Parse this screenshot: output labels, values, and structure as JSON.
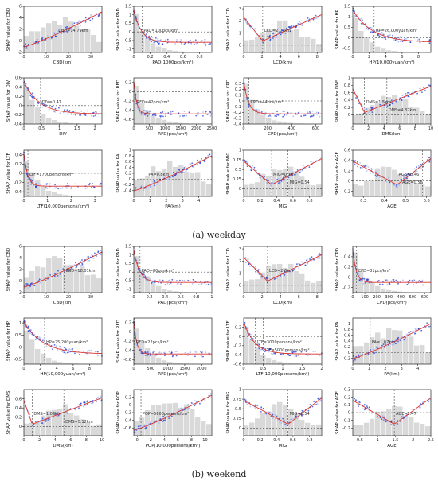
{
  "captions": {
    "weekday": "(a) weekday",
    "weekend": "(b) weekend"
  },
  "colors": {
    "points_low": "#1f3bd6",
    "points_high": "#9fb4ec",
    "trend": "#e0322b",
    "hist": "#d9d9d9",
    "ref": "#444444"
  },
  "chart_data": [
    {
      "type": "scatter",
      "panel": "a1",
      "xlabel": "CBD(km)",
      "ylabel": "SHAP value for CBD",
      "xlim": [
        0,
        35
      ],
      "ylim": [
        -2,
        6
      ],
      "xticks": [
        0,
        10,
        20,
        30
      ],
      "yticks": [
        -2,
        0,
        2,
        4,
        6
      ],
      "shape": "rise",
      "threshold": 14.79,
      "annotation": "CBD=14.79km"
    },
    {
      "type": "scatter",
      "panel": "a2",
      "xlabel": "PAD(1000pcs/km²)",
      "ylabel": "SHAP value for PAD",
      "xlim": [
        0,
        0.95
      ],
      "ylim": [
        -1.2,
        1.5
      ],
      "xticks": [
        0.0,
        0.2,
        0.4,
        0.6,
        0.8
      ],
      "yticks": [
        -1.0,
        -0.5,
        0.0,
        0.5,
        1.0,
        1.5
      ],
      "shape": "decay",
      "threshold": 0.1,
      "annotation": "PAD=100pcs/km²"
    },
    {
      "type": "scatter",
      "panel": "a3",
      "xlabel": "LCD(km)",
      "ylabel": "SHAP value for LCD",
      "xlim": [
        0,
        8.5
      ],
      "ylim": [
        -0.6,
        3.2
      ],
      "xticks": [
        0,
        2,
        4,
        6,
        8
      ],
      "yticks": [
        0,
        1,
        2,
        3
      ],
      "shape": "vshape",
      "threshold": 2.07,
      "annotation": "LCD=2.07km"
    },
    {
      "type": "scatter",
      "panel": "a4",
      "xlabel": "HP(10,000yuan/km²)",
      "ylabel": "SHAP value for HP",
      "xlim": [
        0,
        9.5
      ],
      "ylim": [
        -0.7,
        1.5
      ],
      "xticks": [
        0,
        2,
        4,
        6,
        8
      ],
      "yticks": [
        -0.5,
        0.0,
        0.5,
        1.0,
        1.5
      ],
      "shape": "decay",
      "threshold": 2.6,
      "annotation": "HP=26,000yuan/km²"
    },
    {
      "type": "scatter",
      "panel": "a5",
      "xlabel": "DIV",
      "ylabel": "SHAP value for DIV",
      "xlim": [
        0,
        2.2
      ],
      "ylim": [
        -0.4,
        0.6
      ],
      "xticks": [
        0.0,
        0.5,
        1.0,
        1.5,
        2.0
      ],
      "yticks": [
        -0.4,
        -0.2,
        0.0,
        0.2,
        0.4,
        0.6
      ],
      "shape": "decay",
      "threshold": 0.47,
      "annotation": "DIV=0.47"
    },
    {
      "type": "scatter",
      "panel": "a6",
      "xlabel": "RFD(pcs/km²)",
      "ylabel": "SHAP value for RFD",
      "xlim": [
        0,
        2500
      ],
      "ylim": [
        -0.7,
        0.3
      ],
      "xticks": [
        0,
        500,
        1000,
        1500,
        2000,
        2500
      ],
      "yticks": [
        -0.6,
        -0.4,
        -0.2,
        0.0,
        0.2
      ],
      "shape": "decay",
      "threshold": 42,
      "annotation": "RFD=42pcs/km²"
    },
    {
      "type": "scatter",
      "panel": "a7",
      "xlabel": "CPD(pcs/km²)",
      "ylabel": "SHAP value for CPD",
      "xlim": [
        0,
        650
      ],
      "ylim": [
        -0.4,
        0.4
      ],
      "xticks": [
        0,
        200,
        400,
        600
      ],
      "yticks": [
        -0.4,
        -0.3,
        -0.2,
        -0.1,
        0.0,
        0.1,
        0.2,
        0.3
      ],
      "shape": "decay",
      "threshold": 44,
      "annotation": "CPD=44pcs/km²"
    },
    {
      "type": "scatter",
      "panel": "a8",
      "xlabel": "DMS(km)",
      "ylabel": "SHAP value for DMS",
      "xlim": [
        0,
        10
      ],
      "ylim": [
        -0.25,
        1.0
      ],
      "xticks": [
        0,
        2,
        4,
        6,
        8,
        10
      ],
      "yticks": [
        0.0,
        0.2,
        0.4,
        0.6,
        0.8,
        1.0
      ],
      "shape": "vshape",
      "threshold": 1.5,
      "threshold2": 4.37,
      "annotation": "DMS=1.5km",
      "annotation2": "DMS=4.37km"
    },
    {
      "type": "scatter",
      "panel": "a9",
      "xlabel": "LTF(10,000persons/km²)",
      "ylabel": "SHAP value for LTF",
      "xlim": [
        0,
        3.3
      ],
      "ylim": [
        -0.5,
        0.5
      ],
      "xticks": [
        0,
        1,
        2,
        3
      ],
      "yticks": [
        -0.4,
        -0.2,
        0.0,
        0.2,
        0.4
      ],
      "shape": "decay",
      "threshold": 0.17,
      "annotation": "LTF=1700persons/km²"
    },
    {
      "type": "scatter",
      "panel": "a10",
      "xlabel": "PA(km)",
      "ylabel": "SHAP value for PA",
      "xlim": [
        0,
        4.8
      ],
      "ylim": [
        -0.6,
        1.0
      ],
      "xticks": [
        0,
        1,
        2,
        3,
        4
      ],
      "yticks": [
        -0.4,
        -0.2,
        0.0,
        0.2,
        0.4,
        0.6,
        0.8,
        1.0
      ],
      "shape": "rise",
      "threshold": 0.8,
      "annotation": "PA=0.8km"
    },
    {
      "type": "scatter",
      "panel": "a11",
      "xlabel": "MIG",
      "ylabel": "SHAP value for MIG",
      "xlim": [
        0,
        0.95
      ],
      "ylim": [
        -0.2,
        1.0
      ],
      "xticks": [
        0.0,
        0.2,
        0.4,
        0.6,
        0.8
      ],
      "yticks": [
        0.0,
        0.25,
        0.5,
        0.75,
        1.0
      ],
      "shape": "vshape",
      "threshold": 0.34,
      "threshold2": 0.54,
      "annotation": "MIG=0.34",
      "annotation2": "MIG=0.54"
    },
    {
      "type": "scatter",
      "panel": "a12",
      "xlabel": "AGE",
      "ylabel": "SHAP value for AGE",
      "xlim": [
        0.25,
        0.62
      ],
      "ylim": [
        -0.3,
        0.6
      ],
      "xticks": [
        0.3,
        0.4,
        0.5,
        0.6
      ],
      "yticks": [
        -0.2,
        0.0,
        0.2,
        0.4,
        0.6
      ],
      "shape": "vshape",
      "threshold": 0.46,
      "threshold2": 0.58,
      "annotation": "AGE=0.46",
      "annotation2": "AGE=0.58"
    },
    {
      "type": "scatter",
      "panel": "b1",
      "xlabel": "CBD(km)",
      "ylabel": "SHAP value for CBD",
      "xlim": [
        0,
        35
      ],
      "ylim": [
        -2,
        6
      ],
      "xticks": [
        0,
        10,
        20,
        30
      ],
      "yticks": [
        -2,
        0,
        2,
        4,
        6
      ],
      "shape": "rise",
      "threshold": 18.01,
      "annotation": "CBD=18.01km"
    },
    {
      "type": "scatter",
      "panel": "b2",
      "xlabel": "PAD(pcs/km²)",
      "ylabel": "SHAP value for PAD",
      "xlim": [
        0,
        1.0
      ],
      "ylim": [
        -1.2,
        1.5
      ],
      "xticks": [
        0.0,
        0.2,
        0.4,
        0.6,
        0.8,
        1.0
      ],
      "yticks": [
        -1.0,
        -0.5,
        0.0,
        0.5,
        1.0,
        1.5
      ],
      "shape": "decay",
      "threshold": 0.08,
      "annotation": "PAD=80pcs/km²"
    },
    {
      "type": "scatter",
      "panel": "b3",
      "xlabel": "LCD(km)",
      "ylabel": "SHAP value for LCD",
      "xlim": [
        0,
        8.5
      ],
      "ylim": [
        -0.6,
        3.2
      ],
      "xticks": [
        0,
        2,
        4,
        6,
        8
      ],
      "yticks": [
        0,
        1,
        2,
        3
      ],
      "shape": "vshape",
      "threshold": 2.6,
      "annotation": "LCD=2.6km"
    },
    {
      "type": "scatter",
      "panel": "b4",
      "xlabel": "CPD(pcs/km²)",
      "ylabel": "SHAP value for CPD",
      "xlim": [
        0,
        650
      ],
      "ylim": [
        -0.3,
        0.6
      ],
      "xticks": [
        0,
        100,
        200,
        300,
        400,
        500,
        600
      ],
      "yticks": [
        -0.2,
        0.0,
        0.2,
        0.4
      ],
      "shape": "decay",
      "threshold": 31,
      "annotation": "CPD=31pcs/km²"
    },
    {
      "type": "scatter",
      "panel": "b5",
      "xlabel": "HP(10,000yuan/km²)",
      "ylabel": "SHAP value for HP",
      "xlim": [
        0,
        9.5
      ],
      "ylim": [
        -0.7,
        1.2
      ],
      "xticks": [
        0,
        2,
        4,
        6,
        8
      ],
      "yticks": [
        -0.5,
        0.0,
        0.5,
        1.0
      ],
      "shape": "decay",
      "threshold": 2.52,
      "annotation": "HP=25,200yuan/km²"
    },
    {
      "type": "scatter",
      "panel": "b6",
      "xlabel": "RFD(pcs/km²)",
      "ylabel": "SHAP value for RFD",
      "xlim": [
        0,
        2300
      ],
      "ylim": [
        -0.7,
        0.3
      ],
      "xticks": [
        0,
        500,
        1000,
        1500,
        2000
      ],
      "yticks": [
        -0.6,
        -0.4,
        -0.2,
        0.0,
        0.2
      ],
      "shape": "decay",
      "threshold": 22,
      "annotation": "RFD=22pcs/km²"
    },
    {
      "type": "scatter",
      "panel": "b7",
      "xlabel": "LTF(10,000persons/km²)",
      "ylabel": "SHAP value for LTF",
      "xlim": [
        0,
        2.0
      ],
      "ylim": [
        -0.6,
        0.4
      ],
      "xticks": [
        0.0,
        0.5,
        1.0,
        1.5,
        2.0
      ],
      "yticks": [
        -0.6,
        -0.4,
        -0.2,
        0.0,
        0.2
      ],
      "shape": "decay",
      "threshold": 0.3,
      "threshold2": 0.5,
      "annotation": "LTF=3000persons/km²",
      "annotation2": "LTF=5000persons/km²"
    },
    {
      "type": "scatter",
      "panel": "b8",
      "xlabel": "PA(km)",
      "ylabel": "SHAP value for PA",
      "xlim": [
        0,
        4.8
      ],
      "ylim": [
        -0.4,
        1.2
      ],
      "xticks": [
        0,
        1,
        2,
        3,
        4
      ],
      "yticks": [
        -0.2,
        0.0,
        0.2,
        0.4,
        0.6,
        0.8,
        1.0
      ],
      "shape": "rise",
      "threshold": 1.07,
      "annotation": "PA=1.07km"
    },
    {
      "type": "scatter",
      "panel": "b9",
      "xlabel": "DMS(km)",
      "ylabel": "SHAP value for DMS",
      "xlim": [
        0,
        10
      ],
      "ylim": [
        -0.2,
        0.8
      ],
      "xticks": [
        0,
        2,
        4,
        6,
        8,
        10
      ],
      "yticks": [
        0.0,
        0.2,
        0.4,
        0.6
      ],
      "shape": "vshape",
      "threshold": 1.06,
      "threshold2": 5.12,
      "annotation": "DMS=1.06km",
      "annotation2": "DMS=5.12km"
    },
    {
      "type": "scatter",
      "panel": "b10",
      "xlabel": "POP(10,000persons/km²)",
      "ylabel": "SHAP value for POP",
      "xlim": [
        -0.5,
        11
      ],
      "ylim": [
        -0.8,
        0.4
      ],
      "xticks": [
        0,
        2,
        4,
        6,
        8,
        10
      ],
      "yticks": [
        -0.6,
        -0.4,
        -0.2,
        0.0,
        0.2
      ],
      "shape": "rise",
      "threshold": 0.56,
      "annotation": "POP=5600persons/km²"
    },
    {
      "type": "scatter",
      "panel": "b11",
      "xlabel": "MIG",
      "ylabel": "SHAP value for MIG",
      "xlim": [
        0,
        0.95
      ],
      "ylim": [
        -0.2,
        1.0
      ],
      "xticks": [
        0.0,
        0.2,
        0.4,
        0.6,
        0.8
      ],
      "yticks": [
        0.0,
        0.25,
        0.5,
        0.75,
        1.0
      ],
      "shape": "vshape",
      "threshold": 0.54,
      "annotation": "MIG=0.54"
    },
    {
      "type": "scatter",
      "panel": "b12",
      "xlabel": "AGE",
      "ylabel": "SHAP value for AGE",
      "xlim": [
        0.3,
        2.5
      ],
      "ylim": [
        -0.3,
        0.3
      ],
      "xticks": [
        0.5,
        1.0,
        1.5,
        2.0,
        2.5
      ],
      "yticks": [
        -0.2,
        -0.1,
        0.0,
        0.1,
        0.2,
        0.3
      ],
      "shape": "vshape",
      "threshold": 1.47,
      "annotation": "AGE=1.47"
    }
  ]
}
